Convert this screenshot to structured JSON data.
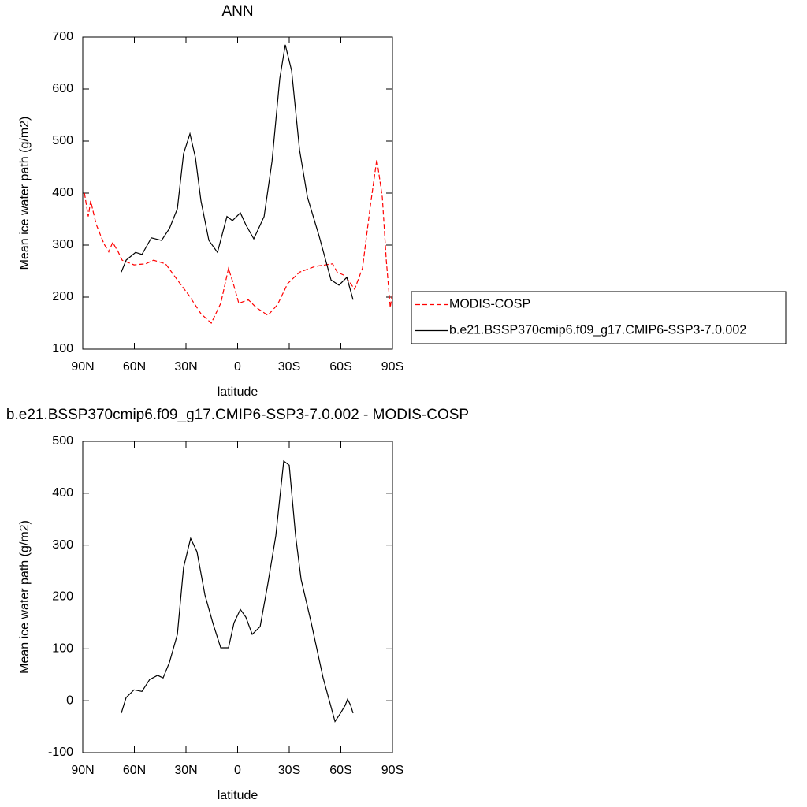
{
  "chart_data": [
    {
      "type": "line",
      "title": "ANN",
      "xlabel": "latitude",
      "ylabel": "Mean ice water path (g/m2)",
      "xlim": [
        90,
        -90
      ],
      "xticks": [
        {
          "value": 90,
          "label": "90N"
        },
        {
          "value": 60,
          "label": "60N"
        },
        {
          "value": 30,
          "label": "30N"
        },
        0,
        {
          "value": -30,
          "label": "30S"
        },
        {
          "value": -60,
          "label": "60S"
        },
        {
          "value": -90,
          "label": "90S"
        }
      ],
      "ylim": [
        100,
        700
      ],
      "yticks": [
        100,
        200,
        300,
        400,
        500,
        600,
        700
      ],
      "legend": true,
      "series": [
        {
          "name": "MODIS-COSP",
          "color": "#ff0000",
          "dashed": true,
          "x": [
            89,
            86.8,
            85.4,
            82.2,
            77.6,
            74.9,
            72.6,
            69.4,
            67.1,
            60.2,
            53.4,
            48.8,
            41.9,
            35,
            28.2,
            21.3,
            15.3,
            9.8,
            5.3,
            2.5,
            -0.7,
            -6.2,
            -10.8,
            -17.6,
            -23.1,
            -29.1,
            -36,
            -45.1,
            -55.2,
            -57.9,
            -62.5,
            -68,
            -72.6,
            -77.2,
            -80.9,
            -84.1,
            -86.4,
            -88.7,
            -90
          ],
          "values": [
            400,
            355,
            385,
            340,
            302,
            287,
            305,
            287,
            271,
            262,
            264,
            271,
            264,
            233,
            203,
            168,
            150,
            188,
            255,
            226,
            188,
            195,
            180,
            165,
            185,
            226,
            248,
            259,
            264,
            248,
            241,
            215,
            256,
            377,
            465,
            392,
            271,
            180,
            208
          ]
        },
        {
          "name": "b.e21.BSSP370cmip6.f09_g17.CMIP6-SSP3-7.0.002",
          "color": "#000000",
          "dashed": false,
          "x": [
            67.6,
            64.8,
            59.3,
            55.6,
            50.1,
            44.2,
            39.6,
            35,
            31.4,
            27.7,
            24.5,
            21.3,
            16.7,
            11.7,
            6.2,
            3,
            -1.6,
            -4.8,
            -9.4,
            -15.4,
            -20,
            -24.5,
            -27.7,
            -31.4,
            -36,
            -40.6,
            -47.4,
            -54.3,
            -58.9,
            -63.5,
            -67.1
          ],
          "values": [
            248,
            271,
            286,
            282,
            314,
            309,
            332,
            370,
            476,
            514,
            468,
            385,
            309,
            286,
            355,
            347,
            362,
            339,
            312,
            355,
            461,
            620,
            685,
            635,
            483,
            392,
            317,
            233,
            223,
            238,
            195
          ]
        }
      ]
    },
    {
      "type": "line",
      "title": "b.e21.BSSP370cmip6.f09_g17.CMIP6-SSP3-7.0.002 - MODIS-COSP",
      "xlabel": "latitude",
      "ylabel": "Mean ice water path (g/m2)",
      "xlim": [
        90,
        -90
      ],
      "xticks": [
        {
          "value": 90,
          "label": "90N"
        },
        {
          "value": 60,
          "label": "60N"
        },
        {
          "value": 30,
          "label": "30N"
        },
        0,
        {
          "value": -30,
          "label": "30S"
        },
        {
          "value": -60,
          "label": "60S"
        },
        {
          "value": -90,
          "label": "90S"
        }
      ],
      "ylim": [
        -100,
        500
      ],
      "yticks": [
        -100,
        0,
        100,
        200,
        300,
        400,
        500
      ],
      "legend": false,
      "series": [
        {
          "color": "#000000",
          "dashed": false,
          "x": [
            67.6,
            64.8,
            60.2,
            55.6,
            51.1,
            46.5,
            43.3,
            39.6,
            35,
            31.4,
            27.3,
            23.6,
            19,
            14.4,
            9.8,
            5.3,
            2.1,
            -1.6,
            -4.8,
            -8.5,
            -13.1,
            -17.6,
            -22.2,
            -26.8,
            -30,
            -33.7,
            -36.9,
            -42.8,
            -49.7,
            -56.6,
            -59.8,
            -62.5,
            -63.9,
            -65.7,
            -67.1
          ],
          "values": [
            -24,
            6,
            21,
            18,
            41,
            49,
            44,
            74,
            128,
            257,
            313,
            287,
            204,
            150,
            102,
            102,
            150,
            176,
            161,
            128,
            143,
            226,
            318,
            462,
            454,
            318,
            234,
            150,
            44,
            -40,
            -24,
            -9,
            3,
            -9,
            -24
          ]
        }
      ]
    }
  ]
}
